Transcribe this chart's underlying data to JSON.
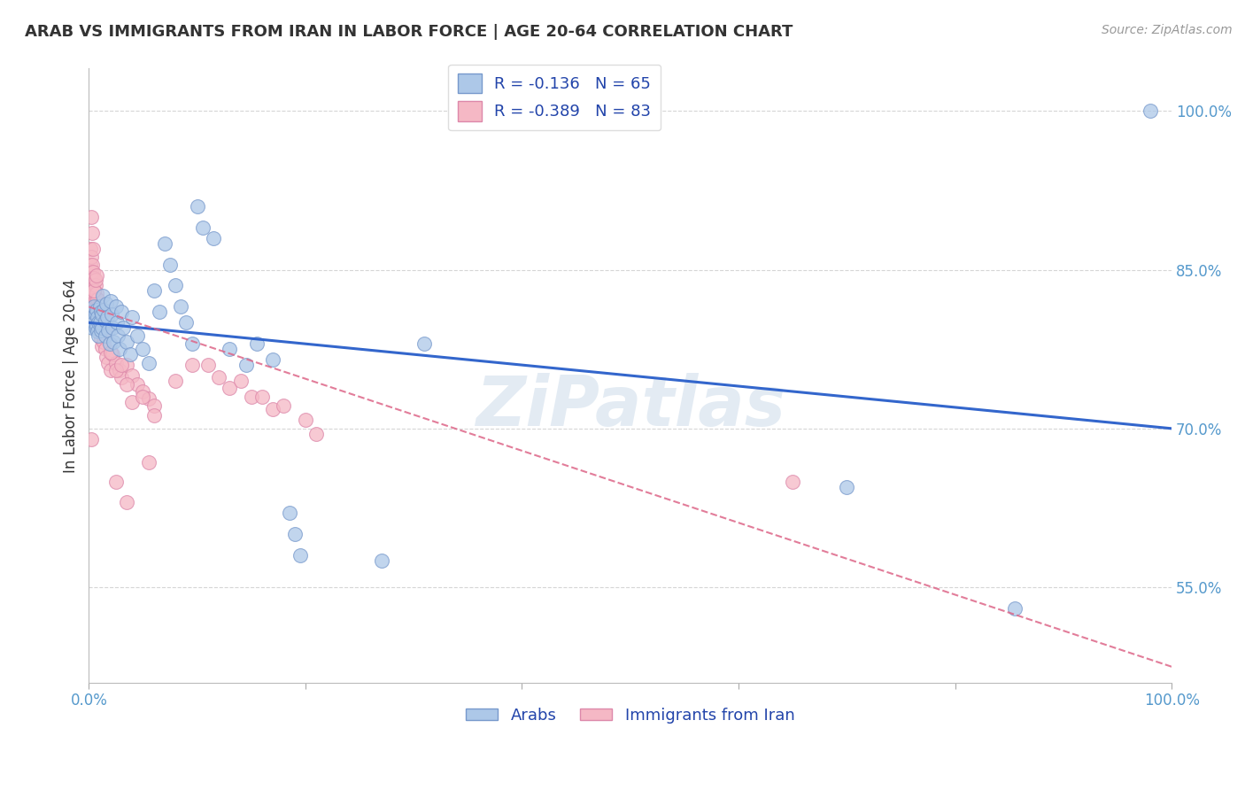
{
  "title": "ARAB VS IMMIGRANTS FROM IRAN IN LABOR FORCE | AGE 20-64 CORRELATION CHART",
  "source": "Source: ZipAtlas.com",
  "ylabel": "In Labor Force | Age 20-64",
  "xlim": [
    0.0,
    1.0
  ],
  "ylim": [
    0.46,
    1.04
  ],
  "xtick_positions": [
    0.0,
    1.0
  ],
  "xtick_labels": [
    "0.0%",
    "100.0%"
  ],
  "ytick_positions": [
    0.55,
    0.7,
    0.85,
    1.0
  ],
  "ytick_labels": [
    "55.0%",
    "70.0%",
    "85.0%",
    "100.0%"
  ],
  "background_color": "#ffffff",
  "grid_color": "#cccccc",
  "blue_line_x": [
    0.0,
    1.0
  ],
  "blue_line_y": [
    0.8,
    0.7
  ],
  "pink_line_x": [
    0.0,
    1.0
  ],
  "pink_line_y": [
    0.815,
    0.475
  ],
  "blue_line_color": "#3366cc",
  "pink_line_color": "#dd6688",
  "blue_scatter_color": "#adc8e8",
  "blue_scatter_edge": "#7799cc",
  "pink_scatter_color": "#f5b8c5",
  "pink_scatter_edge": "#dd88aa",
  "watermark_color": "#c8d8e8",
  "watermark_alpha": 0.5,
  "blue_scatter": [
    [
      0.001,
      0.8
    ],
    [
      0.002,
      0.81
    ],
    [
      0.003,
      0.795
    ],
    [
      0.004,
      0.805
    ],
    [
      0.005,
      0.815
    ],
    [
      0.005,
      0.8
    ],
    [
      0.006,
      0.808
    ],
    [
      0.006,
      0.795
    ],
    [
      0.007,
      0.812
    ],
    [
      0.007,
      0.798
    ],
    [
      0.008,
      0.805
    ],
    [
      0.008,
      0.792
    ],
    [
      0.009,
      0.8
    ],
    [
      0.009,
      0.788
    ],
    [
      0.01,
      0.815
    ],
    [
      0.01,
      0.8
    ],
    [
      0.011,
      0.81
    ],
    [
      0.011,
      0.793
    ],
    [
      0.012,
      0.808
    ],
    [
      0.012,
      0.795
    ],
    [
      0.013,
      0.825
    ],
    [
      0.014,
      0.812
    ],
    [
      0.015,
      0.802
    ],
    [
      0.015,
      0.788
    ],
    [
      0.016,
      0.818
    ],
    [
      0.017,
      0.805
    ],
    [
      0.018,
      0.793
    ],
    [
      0.019,
      0.78
    ],
    [
      0.02,
      0.82
    ],
    [
      0.021,
      0.808
    ],
    [
      0.022,
      0.795
    ],
    [
      0.023,
      0.782
    ],
    [
      0.025,
      0.815
    ],
    [
      0.026,
      0.8
    ],
    [
      0.027,
      0.788
    ],
    [
      0.028,
      0.775
    ],
    [
      0.03,
      0.81
    ],
    [
      0.032,
      0.795
    ],
    [
      0.035,
      0.782
    ],
    [
      0.038,
      0.77
    ],
    [
      0.04,
      0.805
    ],
    [
      0.045,
      0.788
    ],
    [
      0.05,
      0.775
    ],
    [
      0.055,
      0.762
    ],
    [
      0.06,
      0.83
    ],
    [
      0.065,
      0.81
    ],
    [
      0.07,
      0.875
    ],
    [
      0.075,
      0.855
    ],
    [
      0.08,
      0.835
    ],
    [
      0.085,
      0.815
    ],
    [
      0.09,
      0.8
    ],
    [
      0.095,
      0.78
    ],
    [
      0.1,
      0.91
    ],
    [
      0.105,
      0.89
    ],
    [
      0.115,
      0.88
    ],
    [
      0.13,
      0.775
    ],
    [
      0.145,
      0.76
    ],
    [
      0.155,
      0.78
    ],
    [
      0.17,
      0.765
    ],
    [
      0.185,
      0.62
    ],
    [
      0.19,
      0.6
    ],
    [
      0.195,
      0.58
    ],
    [
      0.27,
      0.575
    ],
    [
      0.31,
      0.78
    ],
    [
      0.7,
      0.645
    ],
    [
      0.855,
      0.53
    ],
    [
      0.98,
      1.0
    ]
  ],
  "pink_scatter": [
    [
      0.001,
      0.87
    ],
    [
      0.001,
      0.855
    ],
    [
      0.001,
      0.84
    ],
    [
      0.002,
      0.862
    ],
    [
      0.002,
      0.848
    ],
    [
      0.002,
      0.835
    ],
    [
      0.003,
      0.855
    ],
    [
      0.003,
      0.842
    ],
    [
      0.003,
      0.828
    ],
    [
      0.004,
      0.848
    ],
    [
      0.004,
      0.835
    ],
    [
      0.004,
      0.822
    ],
    [
      0.005,
      0.842
    ],
    [
      0.005,
      0.828
    ],
    [
      0.005,
      0.815
    ],
    [
      0.006,
      0.835
    ],
    [
      0.006,
      0.822
    ],
    [
      0.006,
      0.808
    ],
    [
      0.007,
      0.828
    ],
    [
      0.007,
      0.815
    ],
    [
      0.007,
      0.802
    ],
    [
      0.008,
      0.822
    ],
    [
      0.008,
      0.808
    ],
    [
      0.008,
      0.795
    ],
    [
      0.009,
      0.815
    ],
    [
      0.009,
      0.8
    ],
    [
      0.01,
      0.808
    ],
    [
      0.01,
      0.792
    ],
    [
      0.011,
      0.8
    ],
    [
      0.011,
      0.785
    ],
    [
      0.012,
      0.795
    ],
    [
      0.012,
      0.778
    ],
    [
      0.013,
      0.79
    ],
    [
      0.014,
      0.782
    ],
    [
      0.015,
      0.775
    ],
    [
      0.016,
      0.768
    ],
    [
      0.018,
      0.762
    ],
    [
      0.02,
      0.755
    ],
    [
      0.022,
      0.77
    ],
    [
      0.025,
      0.762
    ],
    [
      0.028,
      0.755
    ],
    [
      0.03,
      0.748
    ],
    [
      0.035,
      0.76
    ],
    [
      0.04,
      0.75
    ],
    [
      0.045,
      0.742
    ],
    [
      0.05,
      0.735
    ],
    [
      0.055,
      0.728
    ],
    [
      0.06,
      0.722
    ],
    [
      0.002,
      0.9
    ],
    [
      0.003,
      0.885
    ],
    [
      0.004,
      0.87
    ],
    [
      0.005,
      0.83
    ],
    [
      0.006,
      0.84
    ],
    [
      0.007,
      0.845
    ],
    [
      0.015,
      0.79
    ],
    [
      0.02,
      0.772
    ],
    [
      0.025,
      0.755
    ],
    [
      0.03,
      0.76
    ],
    [
      0.035,
      0.742
    ],
    [
      0.04,
      0.725
    ],
    [
      0.05,
      0.73
    ],
    [
      0.06,
      0.712
    ],
    [
      0.08,
      0.745
    ],
    [
      0.095,
      0.76
    ],
    [
      0.11,
      0.76
    ],
    [
      0.12,
      0.748
    ],
    [
      0.13,
      0.738
    ],
    [
      0.14,
      0.745
    ],
    [
      0.15,
      0.73
    ],
    [
      0.16,
      0.73
    ],
    [
      0.17,
      0.718
    ],
    [
      0.18,
      0.722
    ],
    [
      0.2,
      0.708
    ],
    [
      0.21,
      0.695
    ],
    [
      0.025,
      0.65
    ],
    [
      0.035,
      0.63
    ],
    [
      0.055,
      0.668
    ],
    [
      0.65,
      0.65
    ],
    [
      0.002,
      0.69
    ]
  ]
}
